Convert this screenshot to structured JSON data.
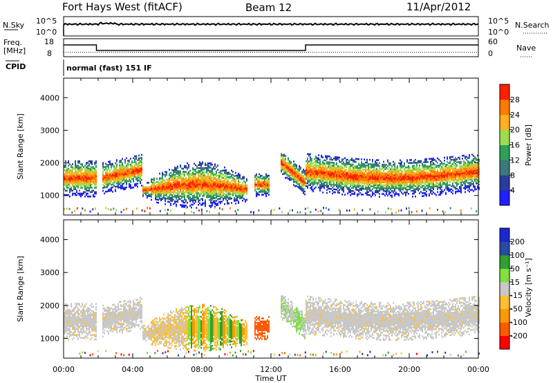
{
  "header": {
    "station": "Fort Hays West (fitACF)",
    "beam": "Beam 12",
    "date": "11/Apr/2012"
  },
  "aux_panels": {
    "nsky_label": "N.Sky",
    "nsky_ticks": [
      "10^5",
      "10^0"
    ],
    "nsearch_label": "N.Search",
    "nsearch_ticks": [
      "10^5",
      "10^0"
    ],
    "freq_label": "Freq.",
    "freq_unit": "[MHz]",
    "freq_ticks": [
      "18",
      "8"
    ],
    "nave_label": "Nave",
    "nave_ticks": [
      "60",
      "0"
    ],
    "cpid_label": "CPID",
    "cpid_text": "normal (fast) 151 IF"
  },
  "colors": {
    "power_scale": [
      "#2020ff",
      "#2a3c9c",
      "#3a7a7a",
      "#2f9f5a",
      "#9fdc50",
      "#ffb020",
      "#ff7a00",
      "#ff2000"
    ],
    "velocity_scale": [
      "#ff0000",
      "#ff5a00",
      "#ff9a00",
      "#ffbf30",
      "#c8c8c8",
      "#80e040",
      "#30a030",
      "#2a4aa0",
      "#1a28d0"
    ]
  },
  "chart_data": [
    {
      "type": "heatmap",
      "name": "power",
      "ylabel": "Slant Range [km]",
      "yticks": [
        "1000",
        "2000",
        "3000",
        "4000"
      ],
      "ylim": [
        400,
        4600
      ],
      "xlabel": "Time UT",
      "xticks": [
        "00:00",
        "04:00",
        "08:00",
        "12:00",
        "16:00",
        "20:00",
        "00:00"
      ],
      "xlim_hours": [
        0,
        24
      ],
      "colorbar_label": "Power [dB]",
      "colorbar_ticks": [
        "4",
        "8",
        "12",
        "16",
        "20",
        "24",
        "28"
      ],
      "colorbar_range": [
        0,
        32
      ]
    },
    {
      "type": "heatmap",
      "name": "velocity",
      "ylabel": "Slant Range [km]",
      "yticks": [
        "1000",
        "2000",
        "3000",
        "4000"
      ],
      "ylim": [
        400,
        4600
      ],
      "xlabel": "Time UT",
      "xticks": [
        "00:00",
        "04:00",
        "08:00",
        "12:00",
        "16:00",
        "20:00",
        "00:00"
      ],
      "xlim_hours": [
        0,
        24
      ],
      "colorbar_label": "Velocity [m s⁻¹]",
      "colorbar_ticks": [
        "200",
        "100",
        "50",
        "15",
        "-15",
        "-50",
        "-100",
        "-200"
      ]
    }
  ],
  "frequency_series": {
    "hours": [
      0,
      1.9,
      1.9,
      14,
      14,
      24
    ],
    "mhz": [
      14.5,
      14.5,
      10.5,
      10.5,
      14.5,
      14.5
    ]
  },
  "nave_series": {
    "value": 16
  }
}
